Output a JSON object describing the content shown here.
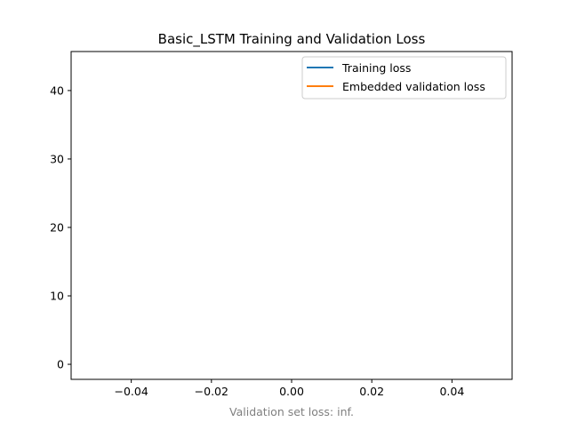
{
  "chart_data": {
    "type": "line",
    "title": "Basic_LSTM Training and Validation Loss",
    "xlabel": "Validation set loss: inf.",
    "ylabel": "",
    "xlim": [
      -0.055,
      0.055
    ],
    "ylim": [
      -2.2,
      45.7
    ],
    "xticks": [
      -0.04,
      -0.02,
      0.0,
      0.02,
      0.04
    ],
    "xtick_labels": [
      "−0.04",
      "−0.02",
      "0.00",
      "0.02",
      "0.04"
    ],
    "yticks": [
      0,
      10,
      20,
      30,
      40
    ],
    "ytick_labels": [
      "0",
      "10",
      "20",
      "30",
      "40"
    ],
    "grid": false,
    "legend_position": "upper-right",
    "series": [
      {
        "name": "Training loss",
        "color": "#1f77b4",
        "x": [],
        "y": []
      },
      {
        "name": "Embedded validation loss",
        "color": "#ff7f0e",
        "x": [],
        "y": []
      }
    ],
    "colors": {
      "xlabel": "#808080",
      "axis": "#000000"
    }
  }
}
